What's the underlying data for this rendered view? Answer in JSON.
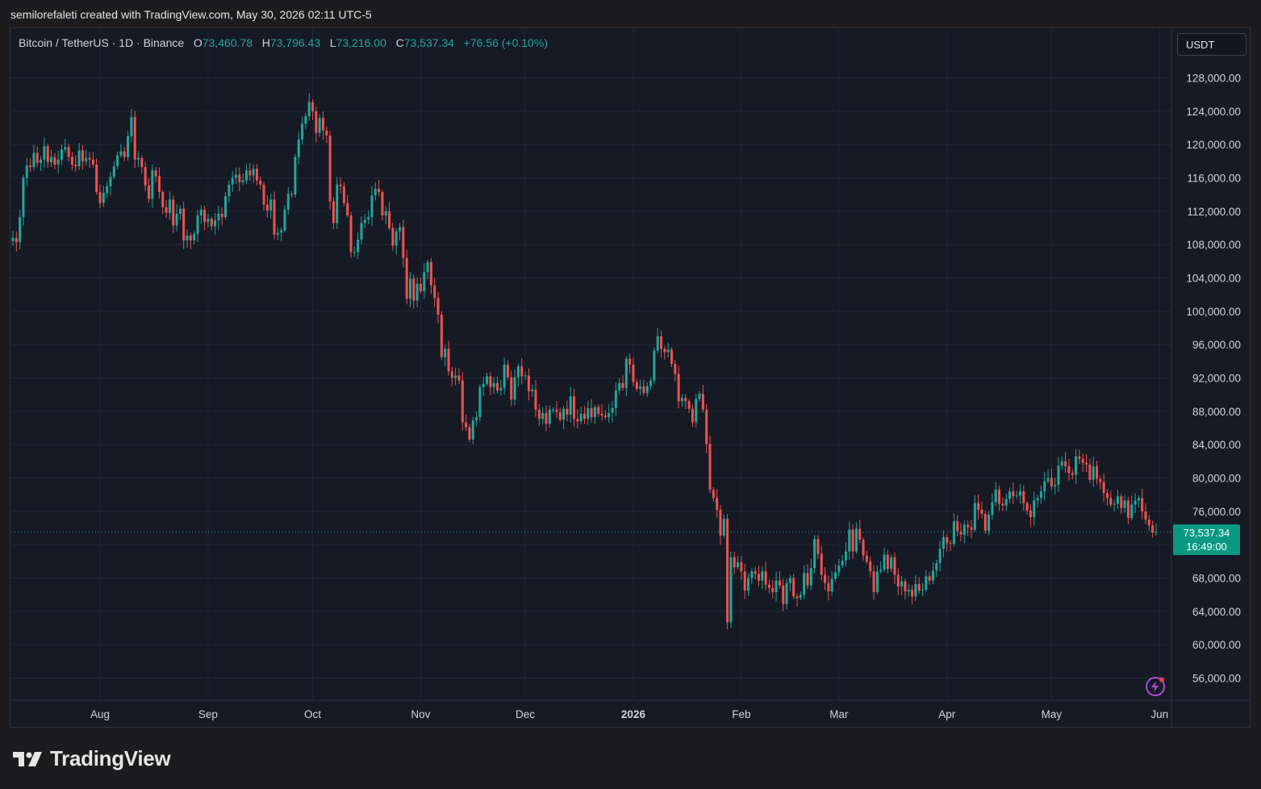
{
  "header": {
    "attribution": "semilorefaleti created with TradingView.com, May 30, 2026 02:11 UTC-5"
  },
  "legend": {
    "symbol": "Bitcoin / TetherUS · 1D · Binance",
    "o_label": "O",
    "o_value": "73,460.78",
    "h_label": "H",
    "h_value": "73,796.43",
    "l_label": "L",
    "l_value": "73,216.00",
    "c_label": "C",
    "c_value": "73,537.34",
    "change": "+76.56 (+0.10%)"
  },
  "currency_button": "USDT",
  "last_price": {
    "price": "73,537.34",
    "countdown": "16:49:00"
  },
  "brand": {
    "name": "TradingView"
  },
  "colors": {
    "up": "#26a69a",
    "down": "#ef5350",
    "background": "#161a25",
    "grid": "#232734",
    "axis_text": "#d1d4dc"
  },
  "icons": {
    "logo": "tradingview-logo-icon",
    "alert": "lightning-icon"
  },
  "chart_data": {
    "type": "candlestick",
    "title": "Bitcoin / TetherUS · 1D · Binance",
    "y_ticks": [
      56000,
      60000,
      64000,
      68000,
      72000,
      76000,
      80000,
      84000,
      88000,
      92000,
      96000,
      100000,
      104000,
      108000,
      112000,
      116000,
      120000,
      124000,
      128000
    ],
    "y_tick_labels": [
      "56,000.00",
      "60,000.00",
      "64,000.00",
      "68,000.00",
      "",
      "76,000.00",
      "80,000.00",
      "84,000.00",
      "88,000.00",
      "92,000.00",
      "96,000.00",
      "100,000.00",
      "104,000.00",
      "108,000.00",
      "112,000.00",
      "116,000.00",
      "120,000.00",
      "124,000.00",
      "128,000.00"
    ],
    "x_labels": [
      {
        "label": "Aug",
        "date": "2025-08-01",
        "bold": false
      },
      {
        "label": "Sep",
        "date": "2025-09-01",
        "bold": false
      },
      {
        "label": "Oct",
        "date": "2025-10-01",
        "bold": false
      },
      {
        "label": "Nov",
        "date": "2025-11-01",
        "bold": false
      },
      {
        "label": "Dec",
        "date": "2025-12-01",
        "bold": false
      },
      {
        "label": "2026",
        "date": "2026-01-01",
        "bold": true
      },
      {
        "label": "Feb",
        "date": "2026-02-01",
        "bold": false
      },
      {
        "label": "Mar",
        "date": "2026-03-01",
        "bold": false
      },
      {
        "label": "Apr",
        "date": "2026-04-01",
        "bold": false
      },
      {
        "label": "May",
        "date": "2026-05-01",
        "bold": false
      },
      {
        "label": "Jun",
        "date": "2026-06-01",
        "bold": false
      }
    ],
    "start_date": "2025-07-07",
    "last_close": 73537.34,
    "closes": [
      108800,
      108300,
      111300,
      116000,
      117500,
      117300,
      119000,
      117800,
      118200,
      119800,
      117900,
      118500,
      117600,
      118200,
      119400,
      119700,
      118500,
      117600,
      117400,
      119300,
      118000,
      118400,
      118200,
      117600,
      114300,
      113000,
      114200,
      115000,
      116100,
      117400,
      118700,
      119200,
      118500,
      121000,
      123300,
      118200,
      118400,
      117300,
      115100,
      113500,
      116900,
      116200,
      114300,
      112500,
      111800,
      113400,
      110300,
      111700,
      112300,
      108500,
      109100,
      108500,
      109300,
      111500,
      112200,
      110700,
      111100,
      110200,
      110900,
      111700,
      111300,
      113800,
      115200,
      116000,
      116400,
      115500,
      115700,
      116900,
      116300,
      117100,
      115700,
      115200,
      112800,
      112100,
      113400,
      109200,
      109400,
      109700,
      112200,
      114100,
      114000,
      118500,
      120600,
      122500,
      123400,
      125100,
      124000,
      121400,
      123200,
      121700,
      121100,
      113200,
      110600,
      115200,
      115000,
      113000,
      111500,
      107100,
      107100,
      108600,
      110600,
      111000,
      111300,
      113900,
      114700,
      114300,
      111500,
      112000,
      110000,
      107900,
      109600,
      110100,
      106400,
      101500,
      103900,
      101300,
      103300,
      102400,
      104700,
      105900,
      103100,
      101600,
      99600,
      94500,
      95500,
      92800,
      92000,
      92300,
      91700,
      86700,
      86100,
      84600,
      86900,
      87300,
      90900,
      91300,
      92200,
      90900,
      91400,
      90500,
      90800,
      93600,
      92100,
      89400,
      92100,
      93400,
      92200,
      92300,
      90400,
      90600,
      88200,
      87100,
      87800,
      86500,
      88200,
      88200,
      87900,
      87000,
      88300,
      87600,
      89800,
      87100,
      86800,
      87700,
      87100,
      88400,
      87300,
      88500,
      87700,
      87500,
      87300,
      87800,
      88400,
      90500,
      91400,
      90800,
      94300,
      93600,
      91500,
      90700,
      91000,
      90200,
      91000,
      91700,
      95300,
      97000,
      95500,
      95100,
      95400,
      93700,
      92500,
      89200,
      89600,
      89200,
      88300,
      86700,
      89500,
      90100,
      88200,
      84100,
      78600,
      77600,
      76200,
      73100,
      75100,
      62700,
      70500,
      69300,
      69900,
      68800,
      66500,
      68000,
      68800,
      68500,
      67700,
      68800,
      67200,
      66800,
      66300,
      67700,
      67100,
      64900,
      67400,
      68000,
      65800,
      65600,
      66000,
      68600,
      67100,
      69200,
      72700,
      70900,
      68400,
      67400,
      66400,
      67900,
      68700,
      69500,
      70100,
      71200,
      73800,
      71200,
      73900,
      72600,
      70700,
      70000,
      68800,
      66300,
      68800,
      69000,
      70800,
      69100,
      70500,
      68400,
      67000,
      67600,
      66400,
      66600,
      65800,
      67300,
      66500,
      66600,
      68200,
      67700,
      68900,
      69800,
      71500,
      72900,
      72200,
      72100,
      74800,
      73600,
      73200,
      74400,
      74100,
      73800,
      77000,
      76200,
      75700,
      73700,
      75600,
      77100,
      78600,
      76900,
      76700,
      77500,
      78400,
      77800,
      77900,
      78400,
      77000,
      76100,
      75300,
      77300,
      77600,
      78400,
      79600,
      80000,
      79000,
      79200,
      81500,
      82000,
      81400,
      80600,
      80400,
      82600,
      82300,
      81800,
      81600,
      79800,
      81400,
      79900,
      79500,
      78200,
      77600,
      76800,
      76900,
      77800,
      76400,
      77300,
      75200,
      76800,
      77300,
      77600,
      76000,
      75000,
      74300,
      73460,
      73537
    ]
  }
}
